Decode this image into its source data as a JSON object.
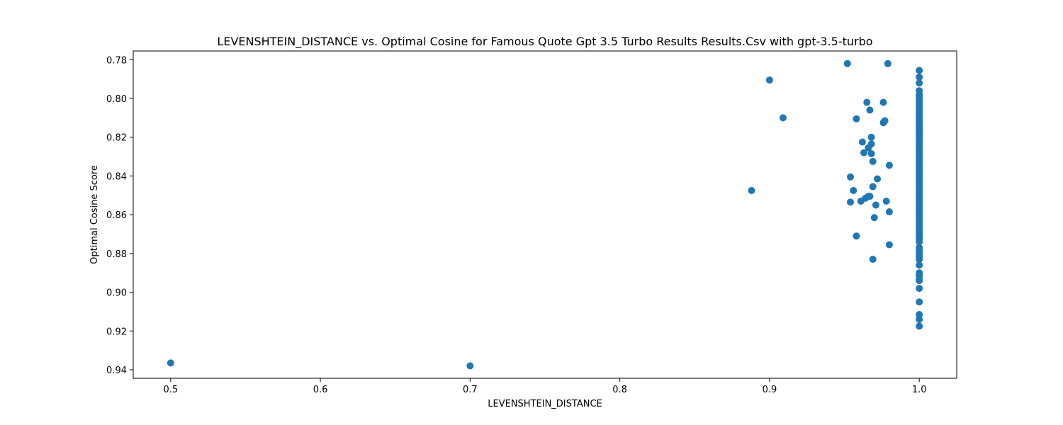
{
  "chart_data": {
    "type": "scatter",
    "title": "LEVENSHTEIN_DISTANCE vs. Optimal Cosine for Famous Quote Gpt 3.5 Turbo Results Results.Csv with gpt-3.5-turbo",
    "xlabel": "LEVENSHTEIN_DISTANCE",
    "ylabel": "Optimal Cosine Score",
    "xlim": [
      0.475,
      1.025
    ],
    "ylim": [
      0.9444,
      0.7755
    ],
    "y_inverted": true,
    "x_ticks": [
      0.5,
      0.6,
      0.7,
      0.8,
      0.9,
      1.0
    ],
    "x_tick_labels": [
      "0.5",
      "0.6",
      "0.7",
      "0.8",
      "0.9",
      "1.0"
    ],
    "y_ticks": [
      0.78,
      0.8,
      0.82,
      0.84,
      0.86,
      0.88,
      0.9,
      0.92,
      0.94
    ],
    "y_tick_labels": [
      "0.78",
      "0.80",
      "0.82",
      "0.84",
      "0.86",
      "0.88",
      "0.90",
      "0.92",
      "0.94"
    ],
    "grid": false,
    "marker_color": "#1f77b4",
    "series": [
      {
        "name": "points",
        "x": [
          0.5,
          0.7,
          0.888,
          0.9,
          0.909,
          0.952,
          0.954,
          0.954,
          0.956,
          0.958,
          0.958,
          0.961,
          0.962,
          0.963,
          0.964,
          0.965,
          0.966,
          0.966,
          0.967,
          0.967,
          0.968,
          0.968,
          0.968,
          0.969,
          0.969,
          0.969,
          0.97,
          0.971,
          0.972,
          0.976,
          0.976,
          0.977,
          0.978,
          0.979,
          0.98,
          0.98,
          0.98,
          1.0,
          1.0,
          1.0,
          1.0,
          1.0,
          1.0,
          1.0,
          1.0,
          1.0,
          1.0,
          1.0,
          1.0,
          1.0,
          1.0,
          1.0,
          1.0,
          1.0,
          1.0,
          1.0,
          1.0,
          1.0,
          1.0,
          1.0,
          1.0,
          1.0,
          1.0,
          1.0,
          1.0,
          1.0,
          1.0,
          1.0,
          1.0,
          1.0,
          1.0,
          1.0,
          1.0,
          1.0,
          1.0,
          1.0,
          1.0,
          1.0,
          1.0,
          1.0,
          1.0,
          1.0,
          1.0,
          1.0,
          1.0,
          1.0,
          1.0,
          1.0,
          1.0,
          1.0,
          1.0,
          1.0,
          1.0,
          1.0,
          1.0,
          1.0,
          1.0,
          1.0,
          1.0,
          1.0,
          1.0,
          1.0,
          1.0,
          1.0,
          1.0,
          1.0,
          1.0,
          1.0,
          1.0,
          1.0,
          1.0,
          1.0
        ],
        "y": [
          0.9365,
          0.938,
          0.8475,
          0.7905,
          0.81,
          0.782,
          0.8405,
          0.8535,
          0.8475,
          0.871,
          0.8105,
          0.853,
          0.8225,
          0.828,
          0.8515,
          0.802,
          0.8255,
          0.8505,
          0.806,
          0.8505,
          0.8285,
          0.82,
          0.8235,
          0.8325,
          0.8455,
          0.883,
          0.8615,
          0.855,
          0.8415,
          0.8125,
          0.802,
          0.8115,
          0.853,
          0.782,
          0.8345,
          0.8585,
          0.8755,
          0.7855,
          0.789,
          0.792,
          0.796,
          0.799,
          0.802,
          0.805,
          0.808,
          0.811,
          0.814,
          0.817,
          0.82,
          0.823,
          0.826,
          0.829,
          0.832,
          0.835,
          0.838,
          0.841,
          0.844,
          0.847,
          0.85,
          0.853,
          0.856,
          0.859,
          0.862,
          0.865,
          0.868,
          0.871,
          0.874,
          0.877,
          0.88,
          0.883,
          0.886,
          0.89,
          0.894,
          0.898,
          0.905,
          0.9115,
          0.914,
          0.9175,
          0.8095,
          0.8125,
          0.8165,
          0.8185,
          0.8215,
          0.8245,
          0.8275,
          0.8305,
          0.8335,
          0.8365,
          0.8395,
          0.8425,
          0.8455,
          0.8485,
          0.8515,
          0.8545,
          0.8575,
          0.8605,
          0.8635,
          0.8665,
          0.8695,
          0.8725,
          0.8785,
          0.8815,
          0.8915,
          0.8935,
          0.798,
          0.8005,
          0.8035,
          0.8065,
          0.8095,
          0.8125,
          0.8155,
          0.8185
        ]
      }
    ]
  }
}
